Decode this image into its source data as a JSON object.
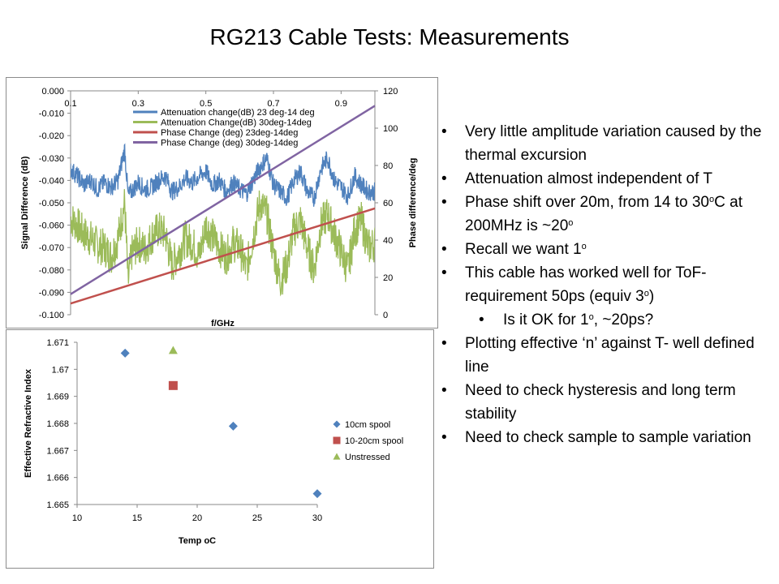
{
  "slide": {
    "title": "RG213 Cable Tests: Measurements"
  },
  "bullets": [
    {
      "level": 1,
      "parts": [
        "Very little amplitude variation caused by the thermal excursion"
      ]
    },
    {
      "level": 1,
      "parts": [
        "Attenuation almost independent of T"
      ]
    },
    {
      "level": 1,
      "parts": [
        "Phase shift over 20m, from 14 to 30",
        "o",
        "C at 200MHz is ~20",
        "o"
      ]
    },
    {
      "level": 1,
      "parts": [
        "Recall we want 1",
        "o"
      ]
    },
    {
      "level": 1,
      "parts": [
        "This cable has worked well for ToF- requirement 50ps (equiv 3",
        "o",
        ")"
      ]
    },
    {
      "level": 2,
      "parts": [
        "Is it OK for 1",
        "o",
        ", ~20ps?"
      ]
    },
    {
      "level": 1,
      "parts": [
        "Plotting effective ‘n’ against T- well defined line"
      ]
    },
    {
      "level": 1,
      "parts": [
        "Need to check hysteresis and long term stability"
      ]
    },
    {
      "level": 1,
      "parts": [
        "Need to check sample to sample variation"
      ]
    }
  ],
  "chart_data": [
    {
      "type": "line",
      "title": "",
      "xlabel": "f/GHz",
      "ylabel": "Signal Difference (dB)",
      "y2label": "Phase difference/deg",
      "xlim": [
        0.1,
        1.0
      ],
      "xticks": [
        "0.1",
        "0.3",
        "0.5",
        "0.7",
        "0.9"
      ],
      "ylim": [
        -0.1,
        0.0
      ],
      "yticks": [
        "0.000",
        "-0.010",
        "-0.020",
        "-0.030",
        "-0.040",
        "-0.050",
        "-0.060",
        "-0.070",
        "-0.080",
        "-0.090",
        "-0.100"
      ],
      "y2lim": [
        0,
        120
      ],
      "y2ticks": [
        "120",
        "100",
        "80",
        "60",
        "40",
        "20",
        "0"
      ],
      "grid": false,
      "legend_position": "top-left",
      "series": [
        {
          "name": "Attenuation change(dB) 23 deg-14 deg",
          "axis": "left",
          "color": "#4f81bd",
          "x": [
            0.1,
            0.12,
            0.14,
            0.16,
            0.18,
            0.2,
            0.22,
            0.24,
            0.26,
            0.27,
            0.28,
            0.3,
            0.32,
            0.34,
            0.36,
            0.38,
            0.4,
            0.42,
            0.44,
            0.46,
            0.48,
            0.5,
            0.52,
            0.54,
            0.56,
            0.58,
            0.6,
            0.62,
            0.64,
            0.66,
            0.68,
            0.7,
            0.72,
            0.74,
            0.76,
            0.78,
            0.8,
            0.82,
            0.84,
            0.86,
            0.88,
            0.9,
            0.92,
            0.94,
            0.96,
            0.98,
            1.0
          ],
          "y": [
            -0.035,
            -0.038,
            -0.042,
            -0.04,
            -0.044,
            -0.041,
            -0.043,
            -0.04,
            -0.026,
            -0.047,
            -0.045,
            -0.041,
            -0.044,
            -0.043,
            -0.04,
            -0.038,
            -0.045,
            -0.043,
            -0.039,
            -0.041,
            -0.038,
            -0.036,
            -0.042,
            -0.04,
            -0.045,
            -0.041,
            -0.044,
            -0.046,
            -0.04,
            -0.034,
            -0.03,
            -0.042,
            -0.045,
            -0.048,
            -0.04,
            -0.036,
            -0.045,
            -0.048,
            -0.035,
            -0.03,
            -0.04,
            -0.043,
            -0.047,
            -0.038,
            -0.042,
            -0.045,
            -0.045
          ]
        },
        {
          "name": "Attenuation Change(dB) 30deg-14deg",
          "axis": "left",
          "color": "#9bbb59",
          "x": [
            0.1,
            0.12,
            0.14,
            0.16,
            0.18,
            0.2,
            0.22,
            0.24,
            0.26,
            0.27,
            0.28,
            0.3,
            0.32,
            0.34,
            0.36,
            0.38,
            0.4,
            0.42,
            0.44,
            0.46,
            0.48,
            0.5,
            0.52,
            0.54,
            0.56,
            0.58,
            0.6,
            0.62,
            0.64,
            0.66,
            0.68,
            0.7,
            0.72,
            0.74,
            0.76,
            0.78,
            0.8,
            0.82,
            0.84,
            0.86,
            0.88,
            0.9,
            0.92,
            0.94,
            0.96,
            0.98,
            1.0
          ],
          "y": [
            -0.057,
            -0.06,
            -0.064,
            -0.066,
            -0.069,
            -0.07,
            -0.074,
            -0.066,
            -0.05,
            -0.086,
            -0.073,
            -0.068,
            -0.071,
            -0.065,
            -0.062,
            -0.064,
            -0.078,
            -0.072,
            -0.066,
            -0.068,
            -0.074,
            -0.06,
            -0.065,
            -0.07,
            -0.074,
            -0.068,
            -0.07,
            -0.08,
            -0.065,
            -0.05,
            -0.055,
            -0.072,
            -0.085,
            -0.078,
            -0.062,
            -0.058,
            -0.07,
            -0.08,
            -0.06,
            -0.055,
            -0.064,
            -0.072,
            -0.08,
            -0.062,
            -0.058,
            -0.07,
            -0.068
          ]
        },
        {
          "name": "Phase Change (deg) 23deg-14deg",
          "axis": "right",
          "color": "#c0504d",
          "x": [
            0.1,
            1.0
          ],
          "y": [
            6,
            57
          ]
        },
        {
          "name": "Phase Change (deg) 30deg-14deg",
          "axis": "right",
          "color": "#8064a2",
          "x": [
            0.1,
            1.0
          ],
          "y": [
            11,
            112
          ]
        }
      ]
    },
    {
      "type": "scatter",
      "title": "",
      "xlabel": "Temp oC",
      "ylabel": "Effective Refractive Index",
      "xlim": [
        10,
        30
      ],
      "xticks": [
        "10",
        "15",
        "20",
        "25",
        "30"
      ],
      "ylim": [
        1.665,
        1.671
      ],
      "yticks": [
        "1.671",
        "1.67",
        "1.669",
        "1.668",
        "1.667",
        "1.666",
        "1.665"
      ],
      "grid": false,
      "legend_position": "right",
      "series": [
        {
          "name": "10cm spool",
          "marker": "diamond",
          "color": "#4f81bd",
          "x": [
            14,
            23,
            30
          ],
          "y": [
            1.6706,
            1.6679,
            1.6654
          ]
        },
        {
          "name": "10-20cm spool",
          "marker": "square",
          "color": "#c0504d",
          "x": [
            18
          ],
          "y": [
            1.6694
          ]
        },
        {
          "name": "Unstressed",
          "marker": "triangle",
          "color": "#9bbb59",
          "x": [
            18
          ],
          "y": [
            1.6707
          ]
        }
      ]
    }
  ]
}
